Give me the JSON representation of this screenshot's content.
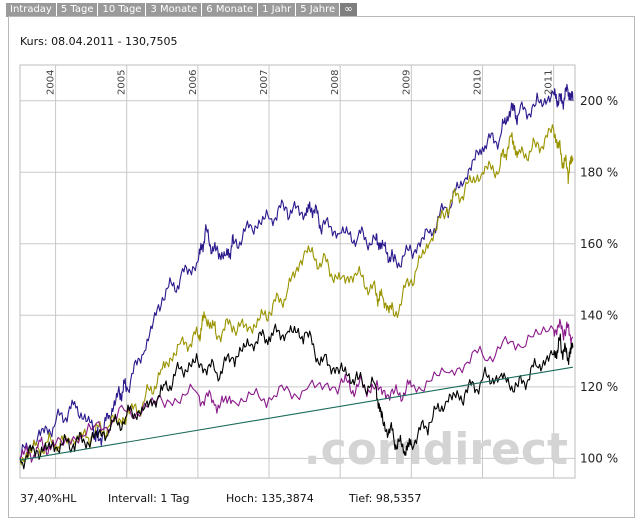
{
  "tabs": [
    {
      "label": "Intraday"
    },
    {
      "label": "5 Tage"
    },
    {
      "label": "10 Tage"
    },
    {
      "label": "3 Monate"
    },
    {
      "label": "6 Monate"
    },
    {
      "label": "1 Jahr"
    },
    {
      "label": "5 Jahre"
    },
    {
      "label": "∞",
      "active": true
    }
  ],
  "header": {
    "kurs": "Kurs: 08.04.2011 - 130,7505"
  },
  "footer": {
    "perf": "37,40%HL",
    "intervall": "Intervall: 1 Tag",
    "hoch": "Hoch: 135,3874",
    "tief": "Tief: 98,5357"
  },
  "watermark": ".comdirect",
  "colors": {
    "indigo": "#2a1a8c",
    "olive": "#9a9400",
    "magenta": "#8a1a8a",
    "black": "#000000",
    "teal": "#1a6b5a",
    "grid": "#c8c8c8",
    "tab_bg": "#9a9a9a"
  },
  "chart_data": {
    "type": "line",
    "x_tick_labels": [
      "2004",
      "2005",
      "2006",
      "2007",
      "2008",
      "2009",
      "2010",
      "2011"
    ],
    "y_tick_labels": [
      "200 %",
      "180 %",
      "160 %",
      "140 %",
      "120 %",
      "100 %"
    ],
    "y_ticks": [
      200,
      180,
      160,
      140,
      120,
      100
    ],
    "xlim": [
      2003.5,
      2011.3
    ],
    "ylim": [
      94.5,
      210
    ],
    "grid": true,
    "series": [
      {
        "color": "#2a1a8c",
        "x": [
          2003.5,
          2003.75,
          2004.0,
          2004.25,
          2004.5,
          2004.6,
          2004.75,
          2004.9,
          2005.0,
          2005.25,
          2005.5,
          2005.75,
          2006.0,
          2006.1,
          2006.25,
          2006.4,
          2006.5,
          2006.75,
          2007.0,
          2007.25,
          2007.5,
          2007.6,
          2007.75,
          2008.0,
          2008.25,
          2008.5,
          2008.6,
          2008.75,
          2009.0,
          2009.25,
          2009.5,
          2009.75,
          2010.0,
          2010.25,
          2010.4,
          2010.5,
          2010.75,
          2011.0,
          2011.1,
          2011.2,
          2011.27
        ],
        "y": [
          100,
          106,
          110,
          115,
          110,
          105,
          112,
          118,
          120,
          130,
          145,
          150,
          155,
          163,
          158,
          157,
          160,
          165,
          167,
          170,
          168,
          170,
          165,
          163,
          162,
          161,
          160,
          155,
          158,
          163,
          170,
          178,
          187,
          190,
          198,
          196,
          199,
          202,
          200,
          203,
          200
        ]
      },
      {
        "color": "#9a9400",
        "x": [
          2003.5,
          2003.75,
          2004.0,
          2004.25,
          2004.5,
          2004.75,
          2005.0,
          2005.25,
          2005.5,
          2005.75,
          2006.0,
          2006.1,
          2006.25,
          2006.5,
          2006.75,
          2007.0,
          2007.25,
          2007.5,
          2007.75,
          2008.0,
          2008.25,
          2008.5,
          2008.6,
          2008.75,
          2009.0,
          2009.25,
          2009.5,
          2009.75,
          2010.0,
          2010.25,
          2010.4,
          2010.5,
          2010.75,
          2011.0,
          2011.1,
          2011.2,
          2011.27
        ],
        "y": [
          100,
          103,
          104,
          105,
          106,
          109,
          112,
          116,
          125,
          132,
          134,
          140,
          135,
          137,
          136,
          141,
          146,
          158,
          155,
          150,
          152,
          146,
          145,
          140,
          150,
          160,
          170,
          175,
          180,
          182,
          190,
          185,
          187,
          192,
          185,
          180,
          184
        ]
      },
      {
        "color": "#8a1a8a",
        "x": [
          2003.5,
          2003.75,
          2004.0,
          2004.5,
          2005.0,
          2005.5,
          2006.0,
          2006.25,
          2006.5,
          2007.0,
          2007.5,
          2008.0,
          2008.25,
          2008.5,
          2008.75,
          2009.0,
          2009.5,
          2010.0,
          2010.5,
          2011.0,
          2011.15,
          2011.27
        ],
        "y": [
          100,
          103,
          104,
          108,
          113,
          116,
          118,
          115,
          116,
          117,
          119,
          121,
          120,
          120,
          118,
          120,
          124,
          129,
          132,
          136,
          136,
          134
        ]
      },
      {
        "color": "#000000",
        "x": [
          2003.5,
          2003.75,
          2004.0,
          2004.25,
          2004.5,
          2004.75,
          2005.0,
          2005.25,
          2005.5,
          2005.75,
          2006.0,
          2006.25,
          2006.5,
          2006.75,
          2007.0,
          2007.25,
          2007.5,
          2007.75,
          2008.0,
          2008.25,
          2008.5,
          2008.6,
          2008.75,
          2008.9,
          2009.0,
          2009.25,
          2009.5,
          2009.75,
          2010.0,
          2010.25,
          2010.5,
          2010.75,
          2011.0,
          2011.1,
          2011.2,
          2011.27
        ],
        "y": [
          100,
          102,
          103,
          104,
          105,
          108,
          112,
          114,
          119,
          125,
          127,
          124,
          128,
          132,
          134,
          135,
          135,
          127,
          125,
          122,
          120,
          110,
          106,
          102,
          104,
          110,
          116,
          118,
          122,
          123,
          120,
          126,
          129,
          132,
          128,
          131
        ]
      },
      {
        "color": "#1a6b5a",
        "x": [
          2003.5,
          2011.27
        ],
        "y": [
          99.5,
          125.5
        ]
      }
    ]
  }
}
